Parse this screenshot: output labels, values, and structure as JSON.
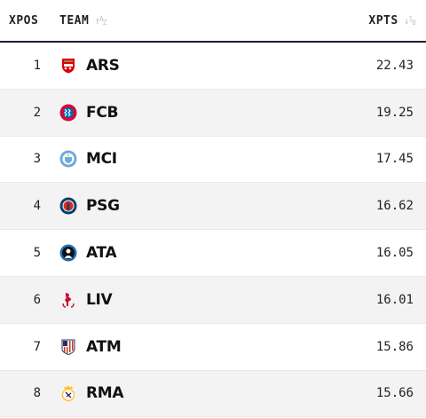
{
  "header": {
    "pos_label": "XPOS",
    "team_label": "TEAM",
    "pts_label": "XPTS",
    "team_sort_icon": "sort-alpha-icon",
    "pts_sort_icon": "sort-numeric-icon"
  },
  "rows": [
    {
      "pos": "1",
      "team": "ARS",
      "xpts": "22.43",
      "crest": "arsenal-crest-icon",
      "color": "#db0007"
    },
    {
      "pos": "2",
      "team": "FCB",
      "xpts": "19.25",
      "crest": "bayern-crest-icon",
      "color": "#dc052d"
    },
    {
      "pos": "3",
      "team": "MCI",
      "xpts": "17.45",
      "crest": "man-city-crest-icon",
      "color": "#6cabdd"
    },
    {
      "pos": "4",
      "team": "PSG",
      "xpts": "16.62",
      "crest": "psg-crest-icon",
      "color": "#004170"
    },
    {
      "pos": "5",
      "team": "ATA",
      "xpts": "16.05",
      "crest": "atalanta-crest-icon",
      "color": "#1e71b8"
    },
    {
      "pos": "6",
      "team": "LIV",
      "xpts": "16.01",
      "crest": "liverpool-crest-icon",
      "color": "#c8102e"
    },
    {
      "pos": "7",
      "team": "ATM",
      "xpts": "15.86",
      "crest": "atletico-crest-icon",
      "color": "#cb3524"
    },
    {
      "pos": "8",
      "team": "RMA",
      "xpts": "15.66",
      "crest": "real-madrid-crest-icon",
      "color": "#febe10"
    }
  ]
}
